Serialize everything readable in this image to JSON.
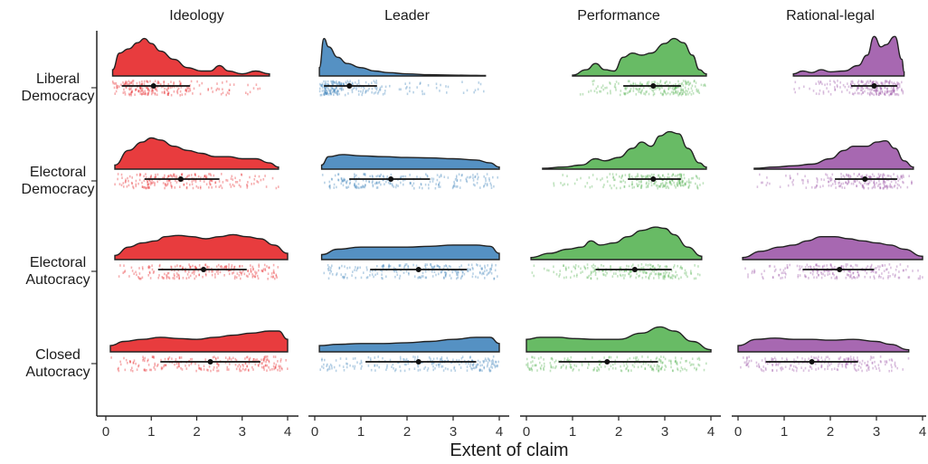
{
  "chart_data": {
    "type": "raincloud",
    "xlabel": "Extent of claim",
    "xlim": [
      0,
      4
    ],
    "xticks": [
      "0",
      "1",
      "2",
      "3",
      "4"
    ],
    "facets": [
      {
        "name": "Ideology",
        "color": "#E41A1C"
      },
      {
        "name": "Leader",
        "color": "#377EB8"
      },
      {
        "name": "Performance",
        "color": "#4DAF4A"
      },
      {
        "name": "Rational-legal",
        "color": "#984EA3"
      }
    ],
    "rows": [
      {
        "line1": "Liberal",
        "line2": "Democracy"
      },
      {
        "line1": "Electoral",
        "line2": "Democracy"
      },
      {
        "line1": "Electoral",
        "line2": "Autocracy"
      },
      {
        "line1": "Closed",
        "line2": "Autocracy"
      }
    ],
    "cells": [
      [
        {
          "range": [
            0.15,
            3.6
          ],
          "median": 1.05,
          "iqr": [
            0.35,
            1.85
          ],
          "density": [
            [
              0.15,
              0.15
            ],
            [
              0.3,
              0.55
            ],
            [
              0.5,
              0.65
            ],
            [
              0.7,
              0.8
            ],
            [
              0.85,
              0.9
            ],
            [
              1.0,
              0.78
            ],
            [
              1.2,
              0.6
            ],
            [
              1.5,
              0.4
            ],
            [
              1.8,
              0.2
            ],
            [
              2.1,
              0.12
            ],
            [
              2.3,
              0.12
            ],
            [
              2.5,
              0.25
            ],
            [
              2.7,
              0.12
            ],
            [
              3.0,
              0.05
            ],
            [
              3.3,
              0.12
            ],
            [
              3.6,
              0.05
            ]
          ]
        },
        {
          "range": [
            0.1,
            3.7
          ],
          "median": 0.75,
          "iqr": [
            0.2,
            1.35
          ],
          "density": [
            [
              0.1,
              0.2
            ],
            [
              0.2,
              0.9
            ],
            [
              0.3,
              0.7
            ],
            [
              0.5,
              0.45
            ],
            [
              0.7,
              0.3
            ],
            [
              1.0,
              0.2
            ],
            [
              1.3,
              0.12
            ],
            [
              1.6,
              0.08
            ],
            [
              2.0,
              0.05
            ],
            [
              2.5,
              0.03
            ],
            [
              3.0,
              0.02
            ],
            [
              3.5,
              0.015
            ],
            [
              3.7,
              0.01
            ]
          ]
        },
        {
          "range": [
            1.0,
            3.9
          ],
          "median": 2.75,
          "iqr": [
            2.1,
            3.35
          ],
          "density": [
            [
              1.0,
              0.02
            ],
            [
              1.3,
              0.15
            ],
            [
              1.5,
              0.3
            ],
            [
              1.7,
              0.15
            ],
            [
              1.9,
              0.12
            ],
            [
              2.1,
              0.45
            ],
            [
              2.3,
              0.55
            ],
            [
              2.5,
              0.5
            ],
            [
              2.7,
              0.55
            ],
            [
              3.0,
              0.78
            ],
            [
              3.2,
              0.9
            ],
            [
              3.4,
              0.8
            ],
            [
              3.6,
              0.5
            ],
            [
              3.75,
              0.15
            ],
            [
              3.9,
              0.05
            ]
          ]
        },
        {
          "range": [
            1.2,
            3.6
          ],
          "median": 2.95,
          "iqr": [
            2.45,
            3.45
          ],
          "density": [
            [
              1.2,
              0.05
            ],
            [
              1.4,
              0.12
            ],
            [
              1.6,
              0.08
            ],
            [
              1.8,
              0.15
            ],
            [
              2.0,
              0.1
            ],
            [
              2.3,
              0.12
            ],
            [
              2.6,
              0.25
            ],
            [
              2.8,
              0.5
            ],
            [
              2.95,
              0.95
            ],
            [
              3.1,
              0.7
            ],
            [
              3.2,
              0.75
            ],
            [
              3.4,
              0.95
            ],
            [
              3.55,
              0.4
            ],
            [
              3.6,
              0.1
            ]
          ]
        }
      ],
      [
        {
          "range": [
            0.2,
            3.8
          ],
          "median": 1.65,
          "iqr": [
            0.85,
            2.5
          ],
          "density": [
            [
              0.2,
              0.1
            ],
            [
              0.5,
              0.45
            ],
            [
              0.8,
              0.65
            ],
            [
              1.0,
              0.75
            ],
            [
              1.2,
              0.7
            ],
            [
              1.5,
              0.55
            ],
            [
              1.8,
              0.45
            ],
            [
              2.1,
              0.38
            ],
            [
              2.4,
              0.3
            ],
            [
              2.7,
              0.3
            ],
            [
              3.0,
              0.25
            ],
            [
              3.3,
              0.25
            ],
            [
              3.6,
              0.15
            ],
            [
              3.8,
              0.05
            ]
          ]
        },
        {
          "range": [
            0.15,
            4.0
          ],
          "median": 1.65,
          "iqr": [
            0.75,
            2.5
          ],
          "density": [
            [
              0.15,
              0.1
            ],
            [
              0.3,
              0.3
            ],
            [
              0.6,
              0.35
            ],
            [
              1.0,
              0.32
            ],
            [
              1.5,
              0.3
            ],
            [
              2.0,
              0.28
            ],
            [
              2.5,
              0.27
            ],
            [
              3.0,
              0.25
            ],
            [
              3.5,
              0.22
            ],
            [
              3.8,
              0.15
            ],
            [
              4.0,
              0.05
            ]
          ]
        },
        {
          "range": [
            0.35,
            3.9
          ],
          "median": 2.75,
          "iqr": [
            2.2,
            3.35
          ],
          "density": [
            [
              0.35,
              0.02
            ],
            [
              0.8,
              0.05
            ],
            [
              1.2,
              0.1
            ],
            [
              1.5,
              0.25
            ],
            [
              1.7,
              0.2
            ],
            [
              2.0,
              0.28
            ],
            [
              2.3,
              0.5
            ],
            [
              2.5,
              0.65
            ],
            [
              2.7,
              0.55
            ],
            [
              2.9,
              0.8
            ],
            [
              3.1,
              0.9
            ],
            [
              3.3,
              0.85
            ],
            [
              3.5,
              0.5
            ],
            [
              3.75,
              0.15
            ],
            [
              3.9,
              0.05
            ]
          ]
        },
        {
          "range": [
            0.35,
            3.8
          ],
          "median": 2.75,
          "iqr": [
            2.1,
            3.45
          ],
          "density": [
            [
              0.35,
              0.02
            ],
            [
              0.8,
              0.05
            ],
            [
              1.2,
              0.08
            ],
            [
              1.6,
              0.12
            ],
            [
              2.0,
              0.25
            ],
            [
              2.3,
              0.45
            ],
            [
              2.5,
              0.55
            ],
            [
              2.8,
              0.55
            ],
            [
              3.0,
              0.65
            ],
            [
              3.2,
              0.68
            ],
            [
              3.4,
              0.5
            ],
            [
              3.6,
              0.2
            ],
            [
              3.8,
              0.05
            ]
          ]
        }
      ],
      [
        {
          "range": [
            0.2,
            4.0
          ],
          "median": 2.15,
          "iqr": [
            1.15,
            3.1
          ],
          "density": [
            [
              0.2,
              0.1
            ],
            [
              0.5,
              0.3
            ],
            [
              0.8,
              0.4
            ],
            [
              1.1,
              0.45
            ],
            [
              1.3,
              0.55
            ],
            [
              1.6,
              0.58
            ],
            [
              1.9,
              0.55
            ],
            [
              2.2,
              0.5
            ],
            [
              2.5,
              0.55
            ],
            [
              2.8,
              0.6
            ],
            [
              3.1,
              0.55
            ],
            [
              3.4,
              0.5
            ],
            [
              3.7,
              0.35
            ],
            [
              4.0,
              0.15
            ]
          ]
        },
        {
          "range": [
            0.15,
            4.0
          ],
          "median": 2.25,
          "iqr": [
            1.2,
            3.3
          ],
          "density": [
            [
              0.15,
              0.12
            ],
            [
              0.5,
              0.25
            ],
            [
              1.0,
              0.3
            ],
            [
              1.5,
              0.3
            ],
            [
              2.0,
              0.3
            ],
            [
              2.5,
              0.32
            ],
            [
              3.0,
              0.35
            ],
            [
              3.5,
              0.35
            ],
            [
              3.8,
              0.32
            ],
            [
              4.0,
              0.15
            ]
          ]
        },
        {
          "range": [
            0.1,
            3.8
          ],
          "median": 2.35,
          "iqr": [
            1.5,
            3.15
          ],
          "density": [
            [
              0.1,
              0.05
            ],
            [
              0.5,
              0.15
            ],
            [
              0.9,
              0.25
            ],
            [
              1.2,
              0.3
            ],
            [
              1.4,
              0.45
            ],
            [
              1.6,
              0.35
            ],
            [
              1.9,
              0.4
            ],
            [
              2.2,
              0.55
            ],
            [
              2.5,
              0.7
            ],
            [
              2.8,
              0.78
            ],
            [
              3.0,
              0.75
            ],
            [
              3.2,
              0.6
            ],
            [
              3.5,
              0.3
            ],
            [
              3.8,
              0.08
            ]
          ]
        },
        {
          "range": [
            0.1,
            4.0
          ],
          "median": 2.2,
          "iqr": [
            1.4,
            2.95
          ],
          "density": [
            [
              0.1,
              0.05
            ],
            [
              0.5,
              0.2
            ],
            [
              0.9,
              0.3
            ],
            [
              1.2,
              0.35
            ],
            [
              1.5,
              0.45
            ],
            [
              1.8,
              0.55
            ],
            [
              2.1,
              0.55
            ],
            [
              2.4,
              0.5
            ],
            [
              2.7,
              0.45
            ],
            [
              3.0,
              0.4
            ],
            [
              3.3,
              0.35
            ],
            [
              3.6,
              0.25
            ],
            [
              4.0,
              0.08
            ]
          ]
        }
      ],
      [
        {
          "range": [
            0.1,
            4.0
          ],
          "median": 2.3,
          "iqr": [
            1.2,
            3.4
          ],
          "density": [
            [
              0.1,
              0.15
            ],
            [
              0.4,
              0.25
            ],
            [
              0.8,
              0.3
            ],
            [
              1.2,
              0.35
            ],
            [
              1.6,
              0.32
            ],
            [
              2.0,
              0.3
            ],
            [
              2.4,
              0.35
            ],
            [
              2.8,
              0.4
            ],
            [
              3.2,
              0.45
            ],
            [
              3.6,
              0.5
            ],
            [
              3.8,
              0.5
            ],
            [
              4.0,
              0.3
            ]
          ]
        },
        {
          "range": [
            0.1,
            4.0
          ],
          "median": 2.25,
          "iqr": [
            1.1,
            3.5
          ],
          "density": [
            [
              0.1,
              0.15
            ],
            [
              0.5,
              0.18
            ],
            [
              1.0,
              0.2
            ],
            [
              1.5,
              0.2
            ],
            [
              2.0,
              0.22
            ],
            [
              2.5,
              0.25
            ],
            [
              3.0,
              0.3
            ],
            [
              3.5,
              0.35
            ],
            [
              3.8,
              0.35
            ],
            [
              4.0,
              0.2
            ]
          ]
        },
        {
          "range": [
            0.0,
            4.0
          ],
          "median": 1.75,
          "iqr": [
            0.7,
            2.85
          ],
          "density": [
            [
              0.0,
              0.3
            ],
            [
              0.3,
              0.35
            ],
            [
              0.7,
              0.35
            ],
            [
              1.0,
              0.32
            ],
            [
              1.5,
              0.3
            ],
            [
              2.0,
              0.3
            ],
            [
              2.5,
              0.45
            ],
            [
              2.9,
              0.6
            ],
            [
              3.2,
              0.5
            ],
            [
              3.6,
              0.25
            ],
            [
              4.0,
              0.05
            ]
          ]
        },
        {
          "range": [
            0.0,
            3.7
          ],
          "median": 1.6,
          "iqr": [
            0.6,
            2.6
          ],
          "density": [
            [
              0.0,
              0.15
            ],
            [
              0.4,
              0.3
            ],
            [
              0.8,
              0.33
            ],
            [
              1.2,
              0.3
            ],
            [
              1.6,
              0.3
            ],
            [
              2.0,
              0.28
            ],
            [
              2.5,
              0.3
            ],
            [
              3.0,
              0.25
            ],
            [
              3.3,
              0.18
            ],
            [
              3.7,
              0.05
            ]
          ]
        }
      ]
    ]
  }
}
